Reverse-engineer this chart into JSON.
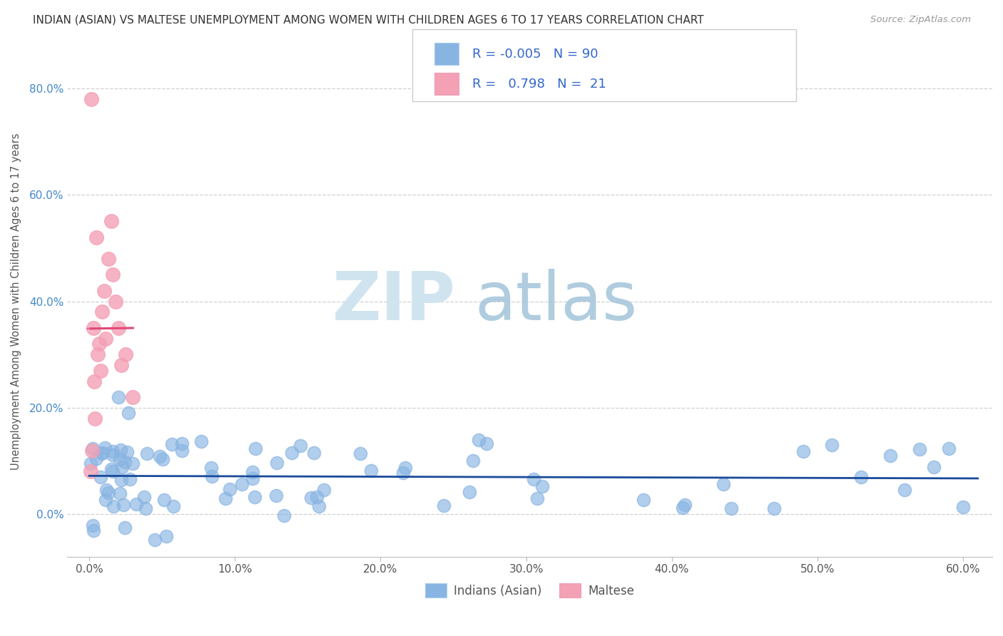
{
  "title": "INDIAN (ASIAN) VS MALTESE UNEMPLOYMENT AMONG WOMEN WITH CHILDREN AGES 6 TO 17 YEARS CORRELATION CHART",
  "source": "Source: ZipAtlas.com",
  "ylabel": "Unemployment Among Women with Children Ages 6 to 17 years",
  "xlabel_vals": [
    0,
    10,
    20,
    30,
    40,
    50,
    60
  ],
  "ylabel_vals": [
    0,
    20,
    40,
    60,
    80
  ],
  "xlim": [
    -1.5,
    62
  ],
  "ylim": [
    -8,
    88
  ],
  "legend_indian": "Indians (Asian)",
  "legend_maltese": "Maltese",
  "r_indian": "-0.005",
  "n_indian": "90",
  "r_maltese": "0.798",
  "n_maltese": "21",
  "indian_color": "#88b4e2",
  "maltese_color": "#f4a0b5",
  "indian_line_color": "#1a4a9a",
  "maltese_line_color": "#e04878",
  "background_color": "#ffffff",
  "grid_color": "#d0d0d0",
  "title_color": "#333333",
  "source_color": "#999999",
  "ylabel_color": "#555555",
  "ytick_color": "#4488cc",
  "xtick_color": "#555555",
  "legend_text_color": "#3366cc",
  "legend_r_color": "#dd2244",
  "watermark_zip_color": "#d0e4f0",
  "watermark_atlas_color": "#a8c8dc"
}
